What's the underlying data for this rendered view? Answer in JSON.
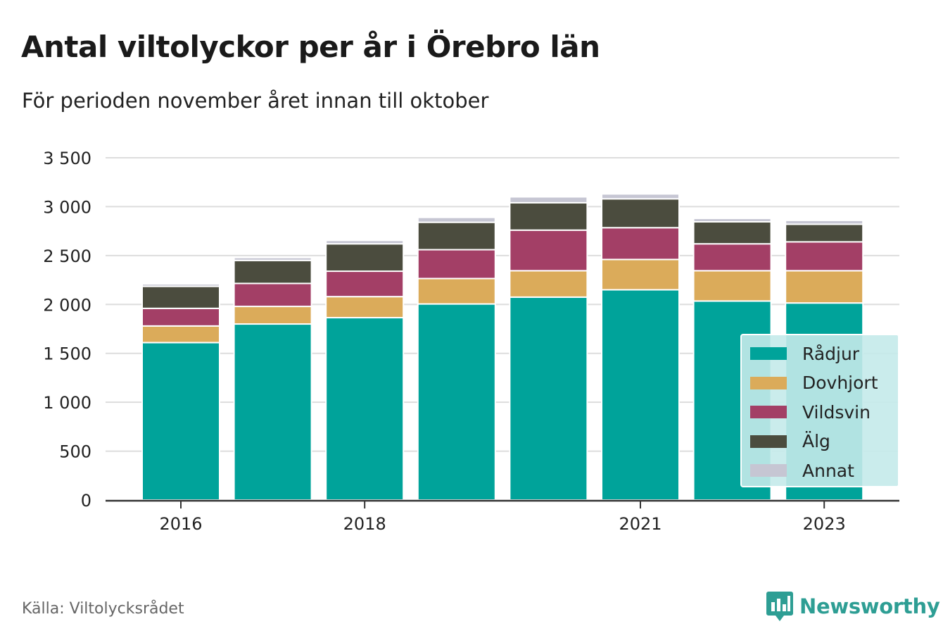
{
  "header": {
    "title": "Antal viltolyckor per år i Örebro län",
    "subtitle": "För perioden november året innan till oktober"
  },
  "footer": {
    "source": "Källa: Viltolycksrådet",
    "brand": "Newsworthy"
  },
  "icons": {
    "brand_logo": "chart-bubble-logo-icon"
  },
  "colors": {
    "Rådjur": "#00a39a",
    "Dovhjort": "#dbab5a",
    "Vildsvin": "#a33f66",
    "Älg": "#4b4c3e",
    "Annat": "#c6c6d3",
    "grid": "#dddddd",
    "axis": "#333333",
    "brand": "#2e9e94"
  },
  "chart_data": {
    "type": "bar",
    "stacked": true,
    "categories": [
      "2016",
      "2017",
      "2018",
      "2019",
      "2020",
      "2021",
      "2022",
      "2023"
    ],
    "x_tick_labels": [
      "2016",
      "",
      "2018",
      "",
      "",
      "2021",
      "",
      "2023"
    ],
    "y_ticks": [
      "0",
      "500",
      "1 000",
      "1 500",
      "2 000",
      "2 500",
      "3 000",
      "3 500"
    ],
    "y_tick_values": [
      0,
      500,
      1000,
      1500,
      2000,
      2500,
      3000,
      3500
    ],
    "ylim": [
      0,
      3500
    ],
    "grid": true,
    "legend_position": "bottom-right",
    "series": [
      {
        "name": "Rådjur",
        "values": [
          1610,
          1800,
          1865,
          2005,
          2075,
          2150,
          2035,
          2015
        ]
      },
      {
        "name": "Dovhjort",
        "values": [
          170,
          180,
          215,
          260,
          270,
          310,
          310,
          330
        ]
      },
      {
        "name": "Vildsvin",
        "values": [
          180,
          235,
          260,
          295,
          415,
          325,
          275,
          295
        ]
      },
      {
        "name": "Älg",
        "values": [
          225,
          235,
          280,
          280,
          280,
          295,
          225,
          180
        ]
      },
      {
        "name": "Annat",
        "values": [
          25,
          30,
          35,
          50,
          60,
          50,
          35,
          40
        ]
      }
    ]
  }
}
